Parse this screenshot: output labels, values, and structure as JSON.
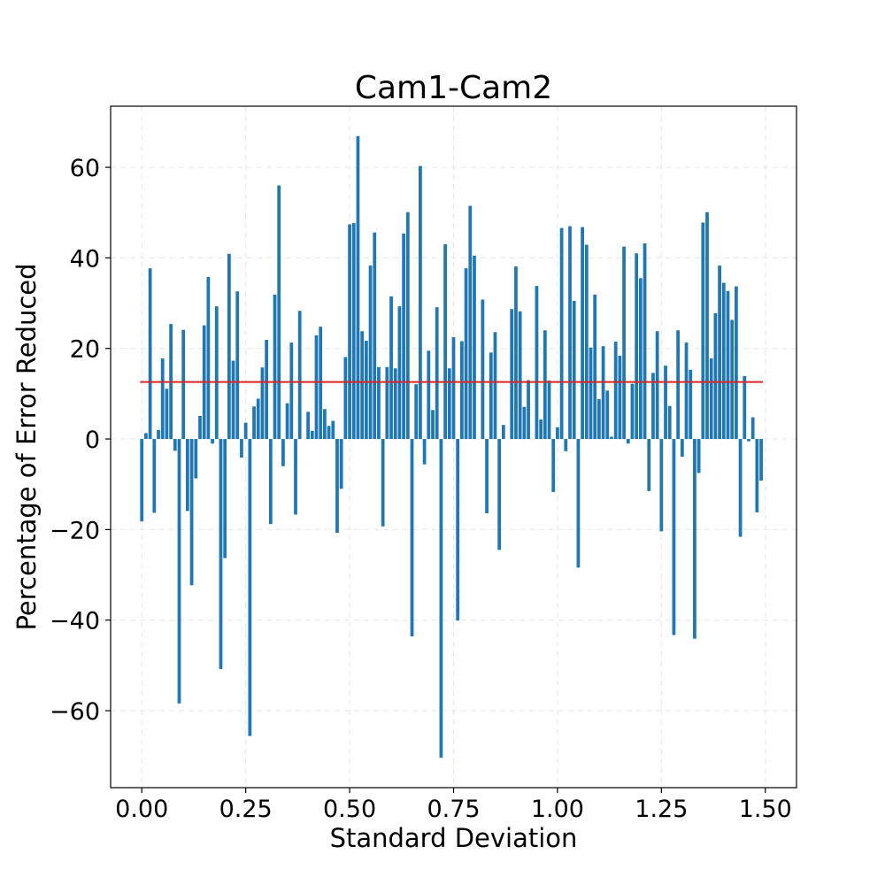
{
  "chart_data": {
    "type": "bar",
    "title": "Cam1-Cam2",
    "xlabel": "Standard Deviation",
    "ylabel": "Percentage of Error Reduced",
    "xlim": [
      -0.075,
      1.575
    ],
    "ylim": [
      -77,
      73.5
    ],
    "xticks": [
      0.0,
      0.25,
      0.5,
      0.75,
      1.0,
      1.25,
      1.5
    ],
    "xtick_labels": [
      "0.00",
      "0.25",
      "0.50",
      "0.75",
      "1.00",
      "1.25",
      "1.50"
    ],
    "yticks": [
      -60,
      -40,
      -20,
      0,
      20,
      40,
      60
    ],
    "ytick_labels": [
      "−60",
      "−40",
      "−20",
      "0",
      "20",
      "40",
      "60"
    ],
    "grid": true,
    "bar_color": "#1f77b4",
    "mean_line": {
      "value": 12.6,
      "color": "#d62728",
      "x_start": 0.0,
      "x_end": 1.49
    },
    "x_start": 0.0,
    "x_step": 0.01,
    "values": [
      -18.2,
      1.3,
      37.7,
      -16.3,
      2.0,
      17.8,
      11.1,
      25.4,
      -2.6,
      -58.4,
      24.1,
      -15.9,
      -32.3,
      -8.7,
      5.1,
      25.1,
      35.8,
      -1.0,
      29.3,
      -50.8,
      -26.3,
      40.9,
      17.3,
      32.6,
      -4.1,
      3.6,
      -65.6,
      7.2,
      8.9,
      15.8,
      21.9,
      -18.8,
      31.9,
      56.0,
      -6.0,
      7.9,
      21.3,
      -16.7,
      28.3,
      0.0,
      6.0,
      1.8,
      22.9,
      24.8,
      6.6,
      2.9,
      4.0,
      -20.7,
      -11.0,
      18.1,
      47.4,
      47.7,
      66.9,
      23.8,
      21.7,
      38.3,
      45.6,
      15.9,
      -19.3,
      15.9,
      31.5,
      15.6,
      29.3,
      45.4,
      50.1,
      -43.6,
      12.1,
      60.3,
      -5.6,
      19.5,
      6.4,
      29.1,
      -70.4,
      43.0,
      15.6,
      22.5,
      -40.1,
      21.6,
      37.7,
      51.5,
      40.5,
      0.0,
      30.8,
      -16.4,
      19.1,
      23.6,
      -24.5,
      3.1,
      0.0,
      28.7,
      38.1,
      28.2,
      7.1,
      13.0,
      0.0,
      33.8,
      4.3,
      24.0,
      12.9,
      -11.7,
      2.6,
      46.6,
      -2.7,
      47.0,
      30.5,
      -28.4,
      46.8,
      42.9,
      20.2,
      31.9,
      8.8,
      20.5,
      10.7,
      0.5,
      21.5,
      18.4,
      42.5,
      -1.0,
      12.2,
      41.0,
      35.5,
      43.2,
      -11.5,
      14.6,
      23.8,
      -20.4,
      16.2,
      7.3,
      -43.3,
      24.0,
      -3.9,
      21.3,
      15.3,
      -44.1,
      -7.5,
      47.8,
      50.1,
      17.8,
      27.8,
      38.3,
      34.5,
      32.7,
      26.3,
      33.7,
      -21.6,
      13.9,
      -0.5,
      4.8,
      -16.2,
      -9.2
    ]
  }
}
